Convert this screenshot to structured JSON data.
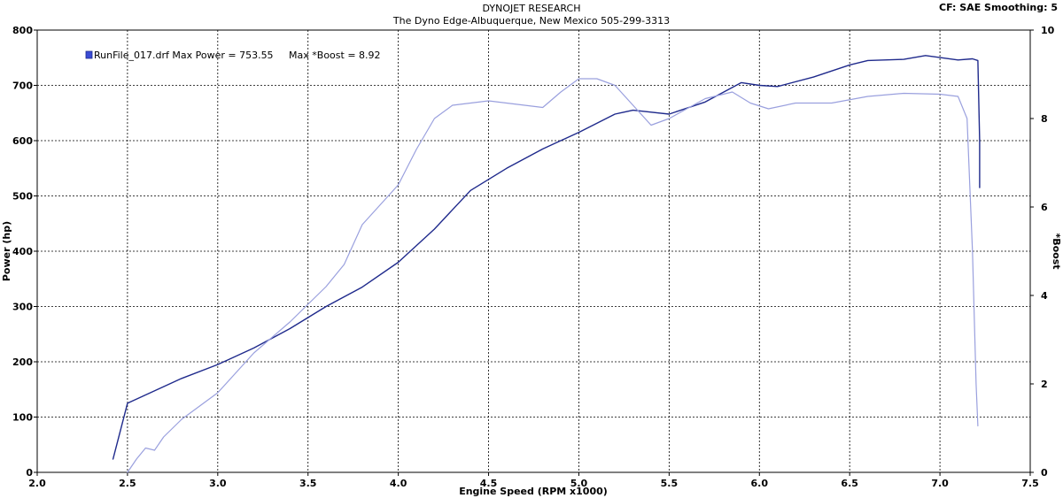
{
  "header": {
    "title": "DYNOJET RESEARCH",
    "subtitle": "The Dyno Edge-Albuquerque, New Mexico  505-299-3313",
    "settings": "CF: SAE  Smoothing: 5"
  },
  "chart_data": {
    "type": "line",
    "xlabel": "Engine Speed (RPM x1000)",
    "ylabel": "Power (hp)",
    "y2label": "*Boost",
    "xlim": [
      2.0,
      7.5
    ],
    "ylim": [
      0,
      800
    ],
    "y2lim": [
      0,
      10
    ],
    "x_ticks": [
      "2.0",
      "2.5",
      "3.0",
      "3.5",
      "4.0",
      "4.5",
      "5.0",
      "5.5",
      "6.0",
      "6.5",
      "7.0",
      "7.5"
    ],
    "y_ticks": [
      "0",
      "100",
      "200",
      "300",
      "400",
      "500",
      "600",
      "700",
      "800"
    ],
    "y2_ticks": [
      "0",
      "2",
      "4",
      "6",
      "8",
      "10"
    ],
    "grid": true,
    "legend_position": "top-left",
    "legend_text": "RunFile_017.drf Max Power = 753.55     Max *Boost = 8.92",
    "colors": {
      "power": "#1f2a8c",
      "boost": "#9aa0de"
    },
    "series": [
      {
        "key": "power",
        "axis": "left",
        "points": [
          [
            2.42,
            24
          ],
          [
            2.5,
            125
          ],
          [
            2.6,
            140
          ],
          [
            2.8,
            170
          ],
          [
            3.0,
            195
          ],
          [
            3.2,
            225
          ],
          [
            3.4,
            260
          ],
          [
            3.6,
            300
          ],
          [
            3.8,
            335
          ],
          [
            4.0,
            380
          ],
          [
            4.2,
            440
          ],
          [
            4.4,
            510
          ],
          [
            4.6,
            550
          ],
          [
            4.8,
            585
          ],
          [
            5.0,
            615
          ],
          [
            5.2,
            648
          ],
          [
            5.3,
            655
          ],
          [
            5.5,
            648
          ],
          [
            5.7,
            670
          ],
          [
            5.9,
            705
          ],
          [
            6.0,
            700
          ],
          [
            6.1,
            698
          ],
          [
            6.3,
            715
          ],
          [
            6.5,
            737
          ],
          [
            6.6,
            745
          ],
          [
            6.8,
            747
          ],
          [
            6.92,
            754
          ],
          [
            7.1,
            746
          ],
          [
            7.18,
            748
          ],
          [
            7.21,
            745
          ],
          [
            7.22,
            600
          ],
          [
            7.22,
            515
          ]
        ]
      },
      {
        "key": "boost",
        "axis": "right",
        "points": [
          [
            2.5,
            0.0
          ],
          [
            2.55,
            0.3
          ],
          [
            2.6,
            0.55
          ],
          [
            2.65,
            0.5
          ],
          [
            2.7,
            0.8
          ],
          [
            2.8,
            1.2
          ],
          [
            3.0,
            1.8
          ],
          [
            3.2,
            2.7
          ],
          [
            3.4,
            3.4
          ],
          [
            3.6,
            4.2
          ],
          [
            3.7,
            4.7
          ],
          [
            3.8,
            5.6
          ],
          [
            4.0,
            6.5
          ],
          [
            4.1,
            7.3
          ],
          [
            4.2,
            8.0
          ],
          [
            4.3,
            8.3
          ],
          [
            4.5,
            8.4
          ],
          [
            4.6,
            8.35
          ],
          [
            4.8,
            8.25
          ],
          [
            4.9,
            8.6
          ],
          [
            5.0,
            8.9
          ],
          [
            5.1,
            8.9
          ],
          [
            5.2,
            8.75
          ],
          [
            5.3,
            8.3
          ],
          [
            5.4,
            7.85
          ],
          [
            5.5,
            8.0
          ],
          [
            5.7,
            8.45
          ],
          [
            5.85,
            8.6
          ],
          [
            5.95,
            8.35
          ],
          [
            6.05,
            8.22
          ],
          [
            6.2,
            8.35
          ],
          [
            6.4,
            8.35
          ],
          [
            6.6,
            8.5
          ],
          [
            6.8,
            8.57
          ],
          [
            7.0,
            8.55
          ],
          [
            7.1,
            8.5
          ],
          [
            7.15,
            8.0
          ],
          [
            7.18,
            5.0
          ],
          [
            7.2,
            2.0
          ],
          [
            7.21,
            1.05
          ]
        ]
      }
    ]
  }
}
